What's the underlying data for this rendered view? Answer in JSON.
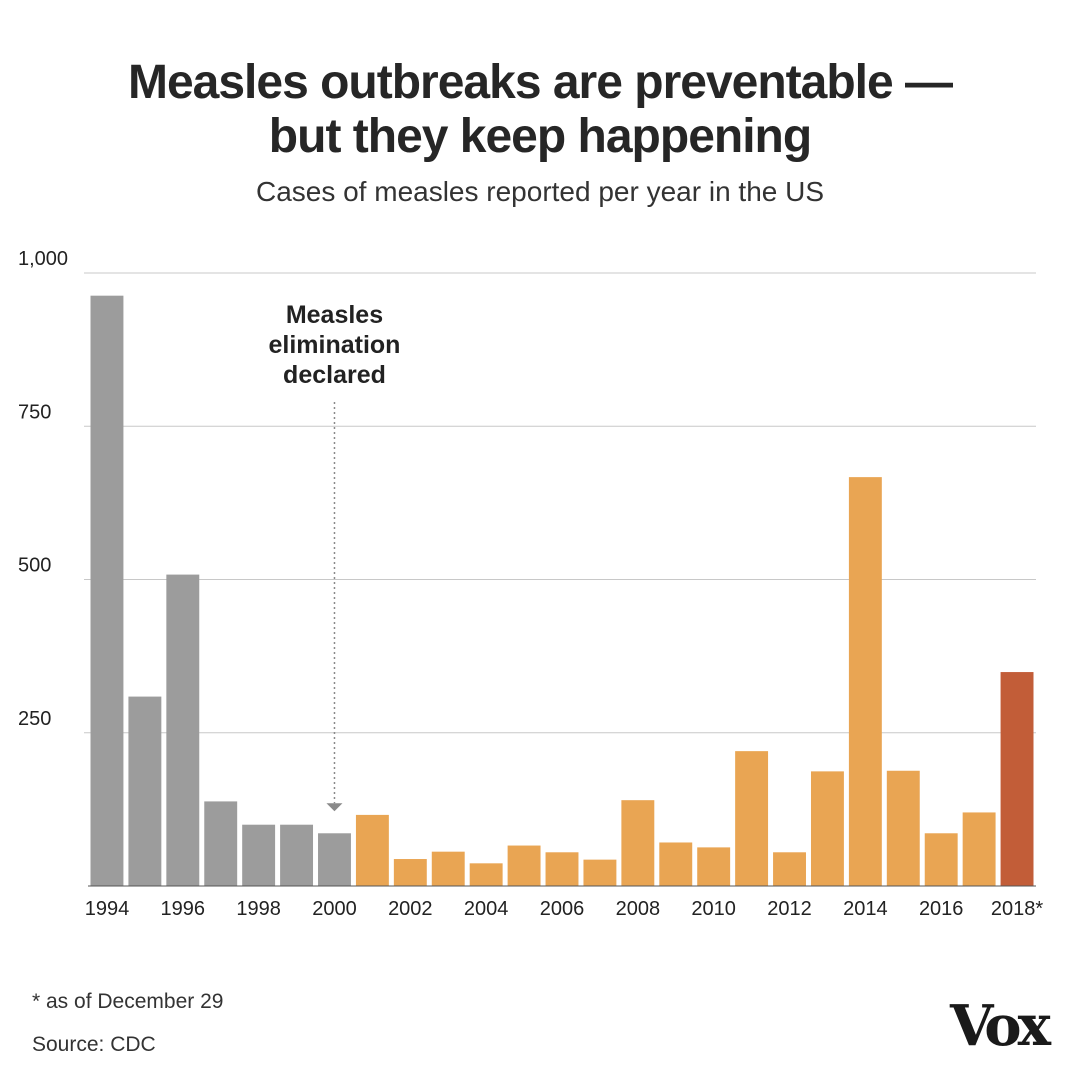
{
  "colors": {
    "pre_elimination": "#9c9c9c",
    "post_elimination": "#e9a553",
    "current_year": "#c25d38",
    "grid": "#c8c8c8",
    "text": "#222222"
  },
  "chart_data": {
    "type": "bar",
    "title_lines": [
      "Measles outbreaks are preventable —",
      "but they keep happening"
    ],
    "subtitle": "Cases of measles reported per year in the US",
    "xlabel": "",
    "ylabel": "",
    "ylim": [
      0,
      1000
    ],
    "y_ticks": [
      {
        "value": 250,
        "label": "250"
      },
      {
        "value": 500,
        "label": "500"
      },
      {
        "value": 750,
        "label": "750"
      },
      {
        "value": 1000,
        "label": "1,000"
      }
    ],
    "categories": [
      "1994",
      "1995",
      "1996",
      "1997",
      "1998",
      "1999",
      "2000",
      "2001",
      "2002",
      "2003",
      "2004",
      "2005",
      "2006",
      "2007",
      "2008",
      "2009",
      "2010",
      "2011",
      "2012",
      "2013",
      "2014",
      "2015",
      "2016",
      "2017",
      "2018"
    ],
    "values": [
      963,
      309,
      508,
      138,
      100,
      100,
      86,
      116,
      44,
      56,
      37,
      66,
      55,
      43,
      140,
      71,
      63,
      220,
      55,
      187,
      667,
      188,
      86,
      120,
      349
    ],
    "groups": [
      "pre_elimination",
      "pre_elimination",
      "pre_elimination",
      "pre_elimination",
      "pre_elimination",
      "pre_elimination",
      "pre_elimination",
      "post_elimination",
      "post_elimination",
      "post_elimination",
      "post_elimination",
      "post_elimination",
      "post_elimination",
      "post_elimination",
      "post_elimination",
      "post_elimination",
      "post_elimination",
      "post_elimination",
      "post_elimination",
      "post_elimination",
      "post_elimination",
      "post_elimination",
      "post_elimination",
      "post_elimination",
      "current_year"
    ],
    "x_tick_labels": [
      {
        "category": "1994",
        "label": "1994"
      },
      {
        "category": "1996",
        "label": "1996"
      },
      {
        "category": "1998",
        "label": "1998"
      },
      {
        "category": "2000",
        "label": "2000"
      },
      {
        "category": "2002",
        "label": "2002"
      },
      {
        "category": "2004",
        "label": "2004"
      },
      {
        "category": "2006",
        "label": "2006"
      },
      {
        "category": "2008",
        "label": "2008"
      },
      {
        "category": "2010",
        "label": "2010"
      },
      {
        "category": "2012",
        "label": "2012"
      },
      {
        "category": "2014",
        "label": "2014"
      },
      {
        "category": "2016",
        "label": "2016"
      },
      {
        "category": "2018",
        "label": "2018*"
      }
    ],
    "annotation": {
      "category": "2000",
      "lines": [
        "Measles",
        "elimination",
        "declared"
      ]
    }
  },
  "footnote": "* as of December 29",
  "source": "Source: CDC",
  "logo_text": "Vox"
}
